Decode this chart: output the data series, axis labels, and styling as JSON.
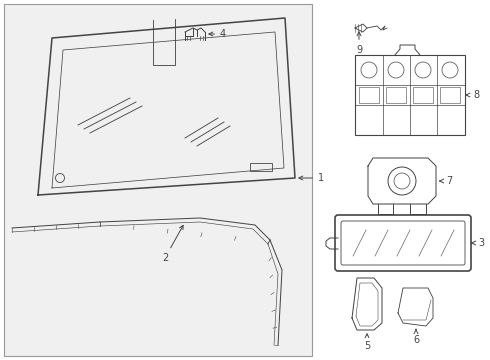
{
  "bg_color": "#ffffff",
  "panel_bg": "#f0f0f0",
  "line_color": "#444444",
  "lw": 0.9,
  "fig_width": 4.9,
  "fig_height": 3.6,
  "dpi": 100
}
